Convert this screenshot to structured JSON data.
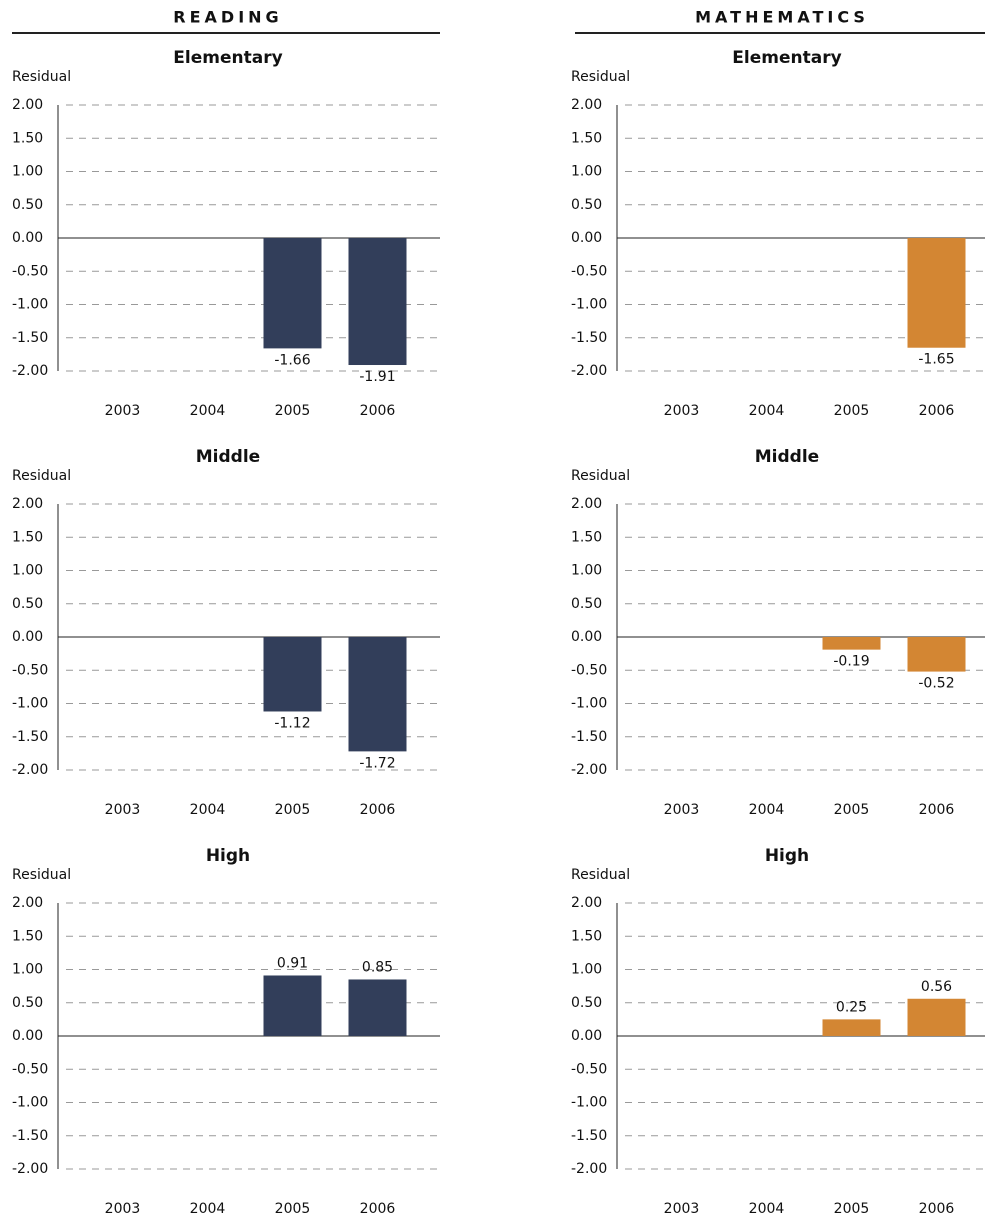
{
  "headers": [
    "READING",
    "MATHEMATICS"
  ],
  "chart_data": [
    {
      "type": "bar",
      "title": "Elementary",
      "y_label": "Residual",
      "categories": [
        "2003",
        "2004",
        "2005",
        "2006"
      ],
      "values": [
        null,
        null,
        -1.66,
        -1.91
      ],
      "color": "#323e5a",
      "ylim": [
        -2,
        2
      ],
      "yticks": [
        {
          "value": 2,
          "label": "2.00"
        },
        {
          "value": 1.5,
          "label": "1.50"
        },
        {
          "value": 1,
          "label": "1.00"
        },
        {
          "value": 0.5,
          "label": "0.50"
        },
        {
          "value": 0,
          "label": "0.00"
        },
        {
          "value": -0.5,
          "label": "-0.50"
        },
        {
          "value": -1,
          "label": "-1.00"
        },
        {
          "value": -1.5,
          "label": "-1.50"
        },
        {
          "value": -2,
          "label": "-2.00"
        }
      ],
      "grid": true
    },
    {
      "type": "bar",
      "title": "Middle",
      "y_label": "Residual",
      "categories": [
        "2003",
        "2004",
        "2005",
        "2006"
      ],
      "values": [
        null,
        null,
        -1.12,
        -1.72
      ],
      "color": "#323e5a",
      "ylim": [
        -2,
        2
      ],
      "yticks": [
        {
          "value": 2,
          "label": "2.00"
        },
        {
          "value": 1.5,
          "label": "1.50"
        },
        {
          "value": 1,
          "label": "1.00"
        },
        {
          "value": 0.5,
          "label": "0.50"
        },
        {
          "value": 0,
          "label": "0.00"
        },
        {
          "value": -0.5,
          "label": "-0.50"
        },
        {
          "value": -1,
          "label": "-1.00"
        },
        {
          "value": -1.5,
          "label": "-1.50"
        },
        {
          "value": -2,
          "label": "-2.00"
        }
      ],
      "grid": true
    },
    {
      "type": "bar",
      "title": "High",
      "y_label": "Residual",
      "categories": [
        "2003",
        "2004",
        "2005",
        "2006"
      ],
      "values": [
        null,
        null,
        0.91,
        0.85
      ],
      "color": "#323e5a",
      "ylim": [
        -2,
        2
      ],
      "yticks": [
        {
          "value": 2,
          "label": "2.00"
        },
        {
          "value": 1.5,
          "label": "1.50"
        },
        {
          "value": 1,
          "label": "1.00"
        },
        {
          "value": 0.5,
          "label": "0.50"
        },
        {
          "value": 0,
          "label": "0.00"
        },
        {
          "value": -0.5,
          "label": "-0.50"
        },
        {
          "value": -1,
          "label": "-1.00"
        },
        {
          "value": -1.5,
          "label": "-1.50"
        },
        {
          "value": -2,
          "label": "-2.00"
        }
      ],
      "grid": true
    },
    {
      "type": "bar",
      "title": "Elementary",
      "y_label": "Residual",
      "categories": [
        "2003",
        "2004",
        "2005",
        "2006"
      ],
      "values": [
        null,
        null,
        null,
        -1.65
      ],
      "color": "#d38633",
      "ylim": [
        -2,
        2
      ],
      "yticks": [
        {
          "value": 2,
          "label": "2.00"
        },
        {
          "value": 1.5,
          "label": "1.50"
        },
        {
          "value": 1,
          "label": "1.00"
        },
        {
          "value": 0.5,
          "label": "0.50"
        },
        {
          "value": 0,
          "label": "0.00"
        },
        {
          "value": -0.5,
          "label": "-0.50"
        },
        {
          "value": -1,
          "label": "-1.00"
        },
        {
          "value": -1.5,
          "label": "-1.50"
        },
        {
          "value": -2,
          "label": "-2.00"
        }
      ],
      "grid": true
    },
    {
      "type": "bar",
      "title": "Middle",
      "y_label": "Residual",
      "categories": [
        "2003",
        "2004",
        "2005",
        "2006"
      ],
      "values": [
        null,
        null,
        -0.19,
        -0.52
      ],
      "color": "#d38633",
      "ylim": [
        -2,
        2
      ],
      "yticks": [
        {
          "value": 2,
          "label": "2.00"
        },
        {
          "value": 1.5,
          "label": "1.50"
        },
        {
          "value": 1,
          "label": "1.00"
        },
        {
          "value": 0.5,
          "label": "0.50"
        },
        {
          "value": 0,
          "label": "0.00"
        },
        {
          "value": -0.5,
          "label": "-0.50"
        },
        {
          "value": -1,
          "label": "-1.00"
        },
        {
          "value": -1.5,
          "label": "-1.50"
        },
        {
          "value": -2,
          "label": "-2.00"
        }
      ],
      "grid": true
    },
    {
      "type": "bar",
      "title": "High",
      "y_label": "Residual",
      "categories": [
        "2003",
        "2004",
        "2005",
        "2006"
      ],
      "values": [
        null,
        null,
        0.25,
        0.56
      ],
      "color": "#d38633",
      "ylim": [
        -2,
        2
      ],
      "yticks": [
        {
          "value": 2,
          "label": "2.00"
        },
        {
          "value": 1.5,
          "label": "1.50"
        },
        {
          "value": 1,
          "label": "1.00"
        },
        {
          "value": 0.5,
          "label": "0.50"
        },
        {
          "value": 0,
          "label": "0.00"
        },
        {
          "value": -0.5,
          "label": "-0.50"
        },
        {
          "value": -1,
          "label": "-1.00"
        },
        {
          "value": -1.5,
          "label": "-1.50"
        },
        {
          "value": -2,
          "label": "-2.00"
        }
      ],
      "grid": true
    }
  ]
}
